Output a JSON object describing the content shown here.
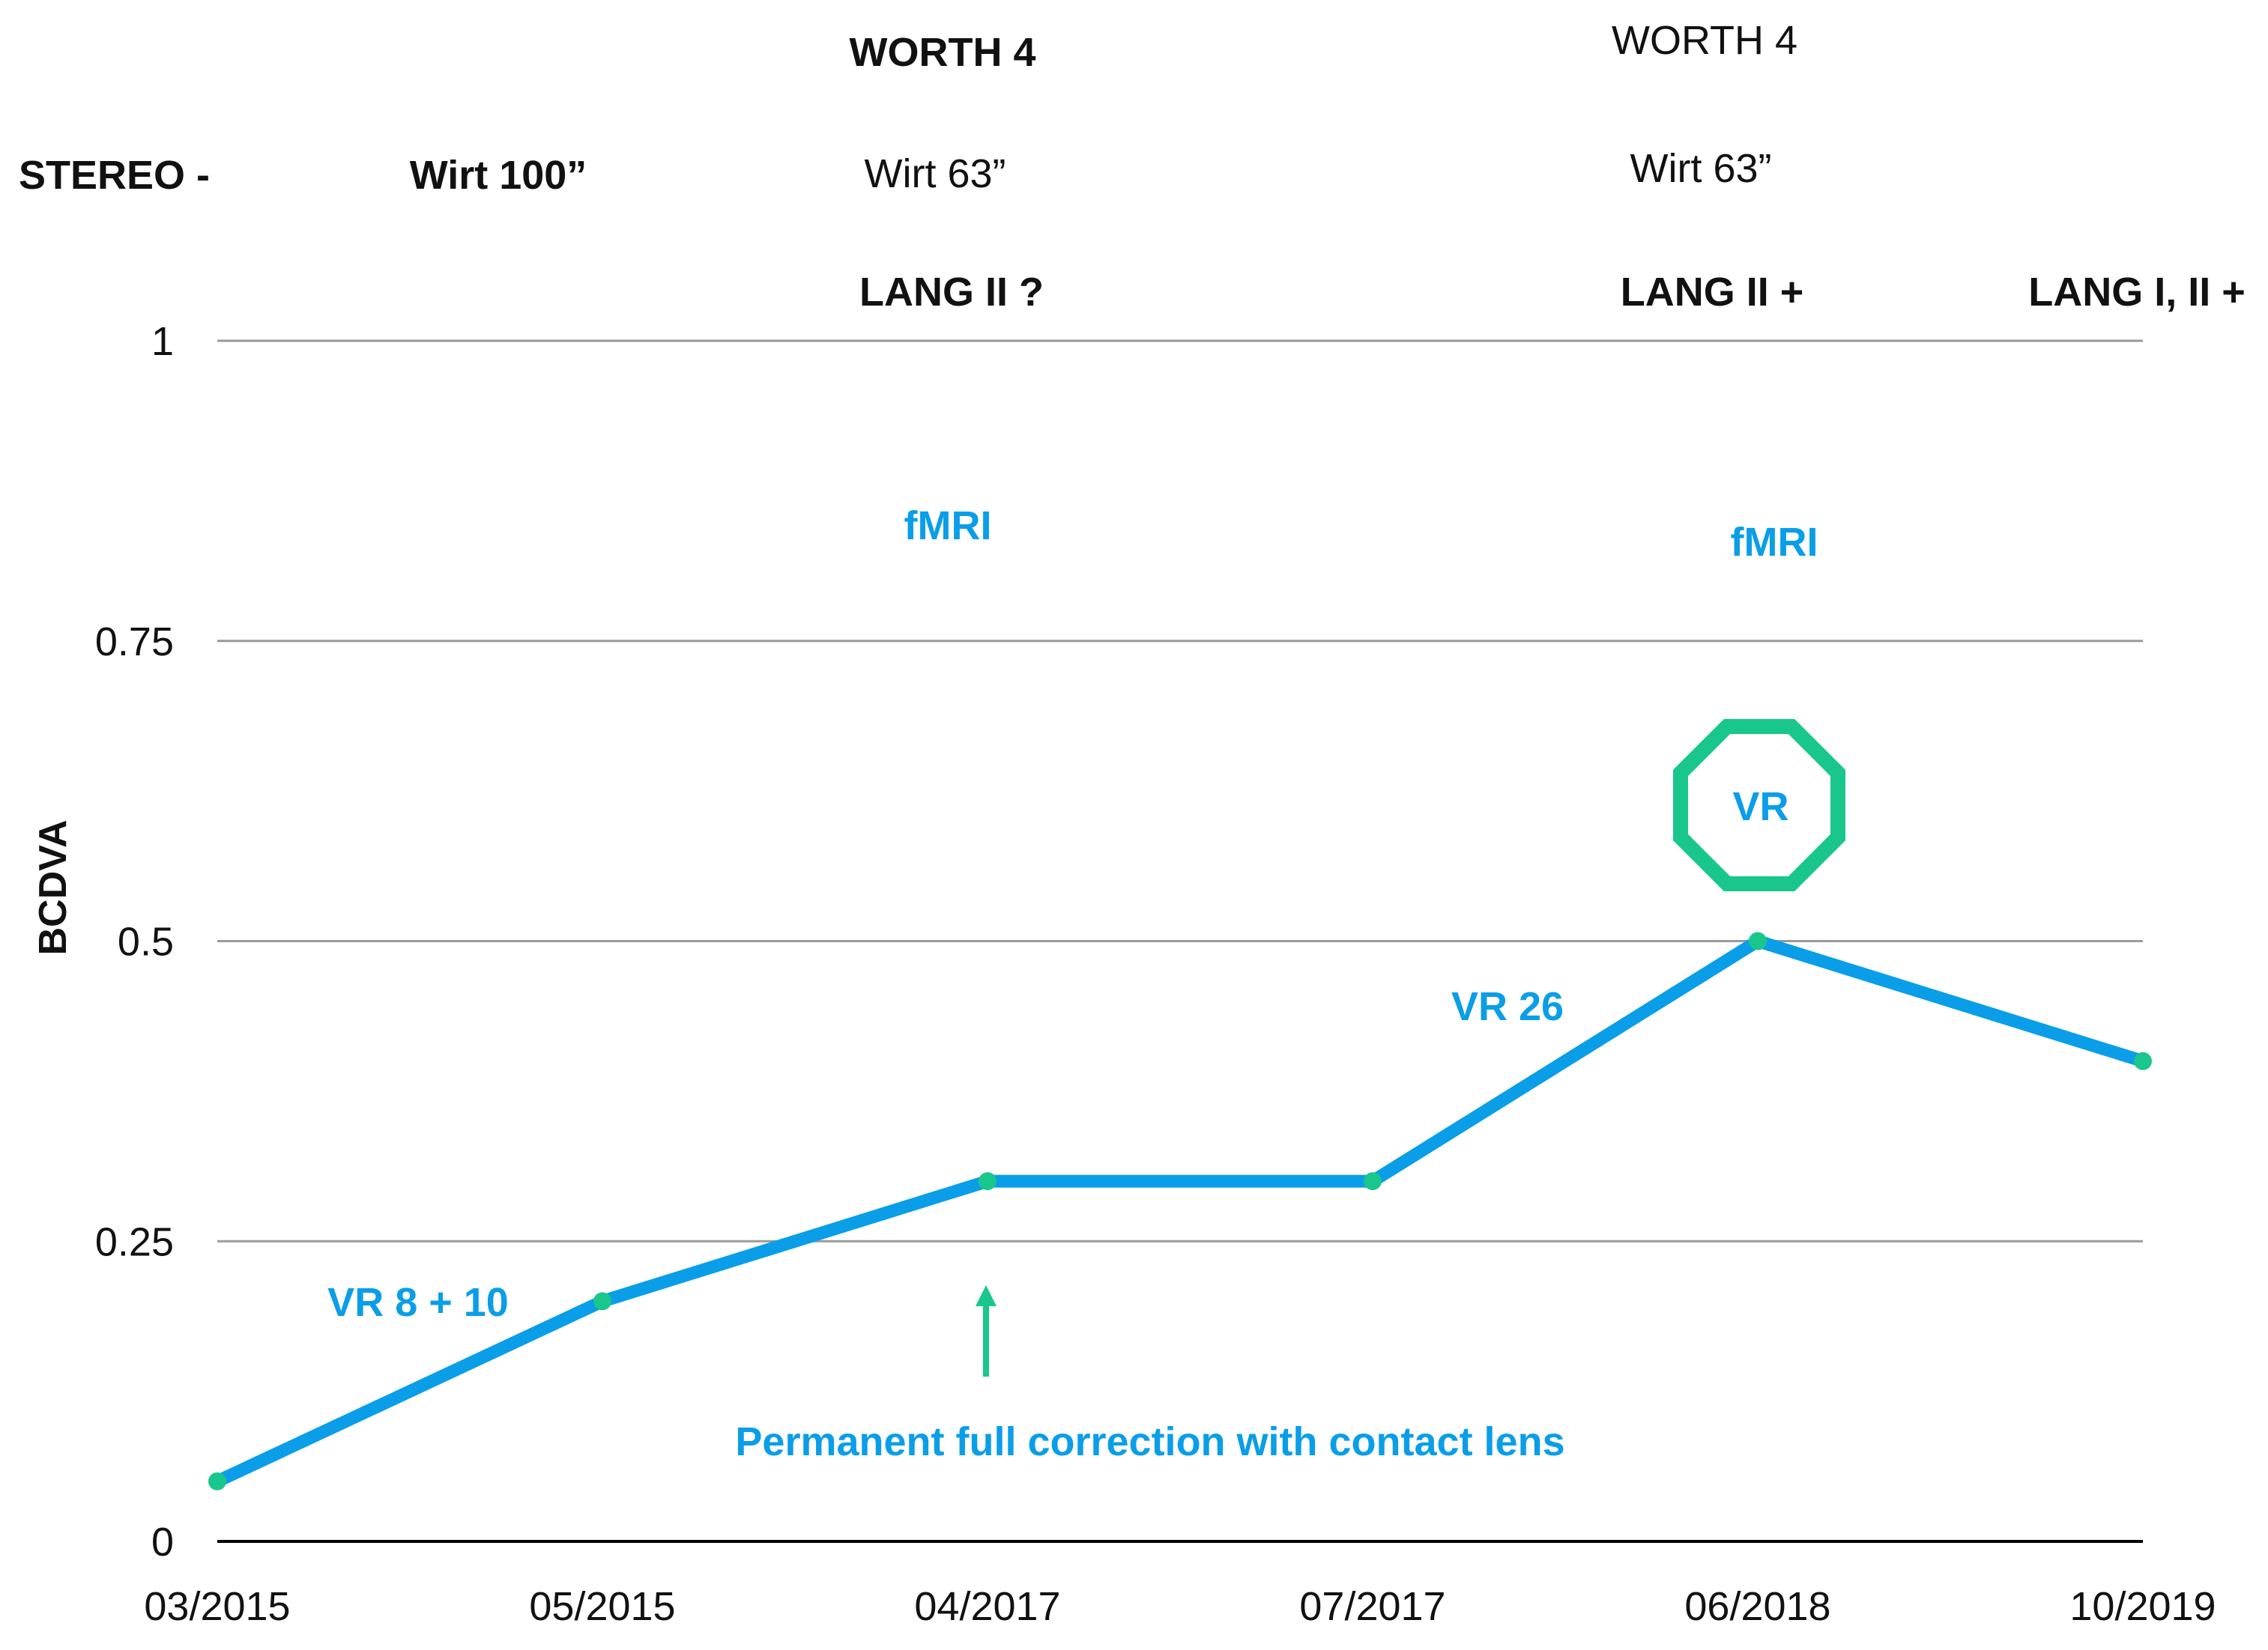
{
  "chart_data": {
    "type": "line",
    "categories": [
      "03/2015",
      "05/2015",
      "04/2017",
      "07/2017",
      "06/2018",
      "10/2019"
    ],
    "series": [
      {
        "values": [
          0.05,
          0.2,
          0.3,
          0.3,
          0.5,
          0.4
        ]
      }
    ],
    "ylabel": "BCDVA",
    "xlabel": "",
    "ylim": [
      0,
      1
    ],
    "yticks": [
      "0",
      "0.25",
      "0.5",
      "0.75",
      "1"
    ],
    "grid": true,
    "line_color": "#0a9ee8",
    "marker_color": "#19c68c",
    "accent_color": "#19c68c",
    "annotations": {
      "vr_8_10": "VR 8 + 10",
      "vr_26": "VR 26",
      "vr_badge": "VR",
      "fmri_1": "fMRI",
      "fmri_2": "fMRI",
      "correction": "Permanent full correction with contact lens"
    },
    "header": {
      "stereo": "STEREO -",
      "wirt_100": "Wirt 100”",
      "worth_1": "WORTH 4",
      "wirt_63_1": "Wirt 63”",
      "lang_1": "LANG II ?",
      "worth_2": "WORTH 4",
      "wirt_63_2": "Wirt 63”",
      "lang_2": "LANG II +",
      "lang_3": "LANG I, II +"
    }
  }
}
